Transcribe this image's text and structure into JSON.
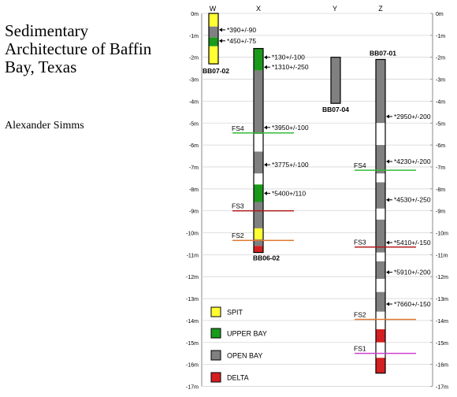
{
  "title_lines": [
    "Sedimentary",
    "Architecture of Baffin",
    "Bay, Texas"
  ],
  "author": "Alexander Simms",
  "colors": {
    "spit": "#ffff33",
    "upper_bay": "#1a9a1a",
    "open_bay": "#808080",
    "delta": "#d42020",
    "gap": "#ffffff",
    "fs_green": "#33bb33",
    "fs_dark_red": "#b01818",
    "fs_orange": "#e07a30",
    "fs_magenta": "#d040d0"
  },
  "depth_axis": {
    "left_labels": [
      "0m",
      "-1m",
      "-2m",
      "-3m",
      "-4m",
      "-5m",
      "-6m",
      "-7m",
      "-8m",
      "-9m",
      "-10m",
      "-11m",
      "-12m",
      "-13m",
      "-14m",
      "-15m",
      "-16m",
      "-17m"
    ],
    "right_labels": [
      "0m",
      "-1m",
      "-2m",
      "-3m",
      "-4m",
      "-5m",
      "-6m",
      "-7m",
      "-8m",
      "-9m",
      "-10m",
      "-11m",
      "-12m",
      "-13m",
      "-14m",
      "-15m",
      "-16m",
      "-17m"
    ]
  },
  "column_headers": [
    "W",
    "X",
    "Y",
    "Z"
  ],
  "cores": [
    {
      "id": "W",
      "name": "BB07-02",
      "segments": [
        {
          "top": 0,
          "bottom": 0.6,
          "facies": "spit"
        },
        {
          "top": 0.6,
          "bottom": 1.1,
          "facies": "open_bay"
        },
        {
          "top": 1.1,
          "bottom": 1.5,
          "facies": "upper_bay"
        },
        {
          "top": 1.5,
          "bottom": 2.3,
          "facies": "spit"
        }
      ]
    },
    {
      "id": "X",
      "name": "BB06-02",
      "segments": [
        {
          "top": 1.6,
          "bottom": 2.6,
          "facies": "upper_bay"
        },
        {
          "top": 2.6,
          "bottom": 5.5,
          "facies": "open_bay"
        },
        {
          "top": 5.5,
          "bottom": 6.3,
          "facies": "gap"
        },
        {
          "top": 6.3,
          "bottom": 7.3,
          "facies": "open_bay"
        },
        {
          "top": 7.3,
          "bottom": 7.8,
          "facies": "gap"
        },
        {
          "top": 7.8,
          "bottom": 8.6,
          "facies": "upper_bay"
        },
        {
          "top": 8.6,
          "bottom": 9.8,
          "facies": "open_bay"
        },
        {
          "top": 9.8,
          "bottom": 10.3,
          "facies": "spit"
        },
        {
          "top": 10.3,
          "bottom": 10.6,
          "facies": "open_bay"
        },
        {
          "top": 10.6,
          "bottom": 10.9,
          "facies": "delta"
        }
      ]
    },
    {
      "id": "Y",
      "name": "BB07-04",
      "segments": [
        {
          "top": 2.0,
          "bottom": 4.1,
          "facies": "open_bay"
        }
      ]
    },
    {
      "id": "Z",
      "name": "BB07-01",
      "segments": [
        {
          "top": 2.1,
          "bottom": 5.0,
          "facies": "open_bay"
        },
        {
          "top": 5.0,
          "bottom": 6.0,
          "facies": "gap"
        },
        {
          "top": 6.0,
          "bottom": 7.3,
          "facies": "open_bay"
        },
        {
          "top": 7.3,
          "bottom": 7.7,
          "facies": "gap"
        },
        {
          "top": 7.7,
          "bottom": 8.9,
          "facies": "open_bay"
        },
        {
          "top": 8.9,
          "bottom": 9.4,
          "facies": "gap"
        },
        {
          "top": 9.4,
          "bottom": 10.9,
          "facies": "open_bay"
        },
        {
          "top": 10.9,
          "bottom": 11.3,
          "facies": "gap"
        },
        {
          "top": 11.3,
          "bottom": 12.1,
          "facies": "open_bay"
        },
        {
          "top": 12.1,
          "bottom": 12.7,
          "facies": "gap"
        },
        {
          "top": 12.7,
          "bottom": 13.6,
          "facies": "open_bay"
        },
        {
          "top": 13.6,
          "bottom": 14.4,
          "facies": "gap"
        },
        {
          "top": 14.4,
          "bottom": 15.0,
          "facies": "delta"
        },
        {
          "top": 15.0,
          "bottom": 15.7,
          "facies": "gap"
        },
        {
          "top": 15.7,
          "bottom": 16.4,
          "facies": "delta"
        }
      ]
    }
  ],
  "dates": [
    {
      "core": "W",
      "depth": 0.75,
      "label": "*390+/-90"
    },
    {
      "core": "W",
      "depth": 1.25,
      "label": "*450+/-75"
    },
    {
      "core": "X",
      "depth": 2.0,
      "label": "*130+/-100"
    },
    {
      "core": "X",
      "depth": 2.45,
      "label": "*1310+/-250"
    },
    {
      "core": "X",
      "depth": 5.2,
      "label": "*3950+/-100"
    },
    {
      "core": "X",
      "depth": 6.9,
      "label": "*3775+/-100"
    },
    {
      "core": "X",
      "depth": 8.2,
      "label": "*5400+/110"
    },
    {
      "core": "Z",
      "depth": 4.7,
      "label": "*2950+/-200"
    },
    {
      "core": "Z",
      "depth": 6.75,
      "label": "*4230+/-200"
    },
    {
      "core": "Z",
      "depth": 8.5,
      "label": "*4530+/-250"
    },
    {
      "core": "Z",
      "depth": 10.45,
      "label": "*5410+/-150"
    },
    {
      "core": "Z",
      "depth": 11.8,
      "label": "*5910+/-200"
    },
    {
      "core": "Z",
      "depth": 13.25,
      "label": "*7660+/-150"
    }
  ],
  "flooding_surfaces": [
    {
      "core": "X",
      "label": "FS4",
      "depth": 5.45,
      "color": "fs_green"
    },
    {
      "core": "X",
      "label": "FS3",
      "depth": 9.0,
      "color": "fs_dark_red"
    },
    {
      "core": "X",
      "label": "FS2",
      "depth": 10.35,
      "color": "fs_orange"
    },
    {
      "core": "Z",
      "label": "FS4",
      "depth": 7.15,
      "color": "fs_green"
    },
    {
      "core": "Z",
      "label": "FS3",
      "depth": 10.65,
      "color": "fs_dark_red"
    },
    {
      "core": "Z",
      "label": "FS2",
      "depth": 13.95,
      "color": "fs_orange"
    },
    {
      "core": "Z",
      "label": "FS1",
      "depth": 15.5,
      "color": "fs_magenta"
    }
  ],
  "legend": [
    {
      "label": "SPIT",
      "facies": "spit"
    },
    {
      "label": "UPPER BAY",
      "facies": "upper_bay"
    },
    {
      "label": "OPEN BAY",
      "facies": "open_bay"
    },
    {
      "label": "DELTA",
      "facies": "delta"
    }
  ]
}
